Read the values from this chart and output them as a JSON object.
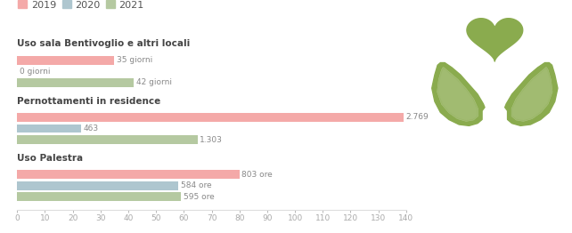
{
  "legend": [
    "2019",
    "2020",
    "2021"
  ],
  "colors": [
    "#f4a9a8",
    "#aec6cf",
    "#b5c9a1"
  ],
  "sections": [
    {
      "title": "Uso sala Bentivoglio e altri locali",
      "bars": [
        {
          "label": "35 giorni",
          "scaled": 35
        },
        {
          "label": "0 giorni",
          "scaled": 0
        },
        {
          "label": "42 giorni",
          "scaled": 42
        }
      ]
    },
    {
      "title": "Pernottamenti in residence",
      "bars": [
        {
          "label": "2.769",
          "scaled": 139
        },
        {
          "label": "463",
          "scaled": 23
        },
        {
          "label": "1.303",
          "scaled": 65
        }
      ]
    },
    {
      "title": "Uso Palestra",
      "bars": [
        {
          "label": "803 ore",
          "scaled": 80
        },
        {
          "label": "584 ore",
          "scaled": 58
        },
        {
          "label": "595 ore",
          "scaled": 59
        }
      ]
    }
  ],
  "xlim": [
    0,
    140
  ],
  "background_color": "#ffffff",
  "title_fontsize": 7.5,
  "label_fontsize": 6.5,
  "tick_fontsize": 6.5,
  "legend_fontsize": 8,
  "title_color": "#444444",
  "label_color": "#888888",
  "tick_color": "#aaaaaa",
  "icon_color": "#8aab4e"
}
